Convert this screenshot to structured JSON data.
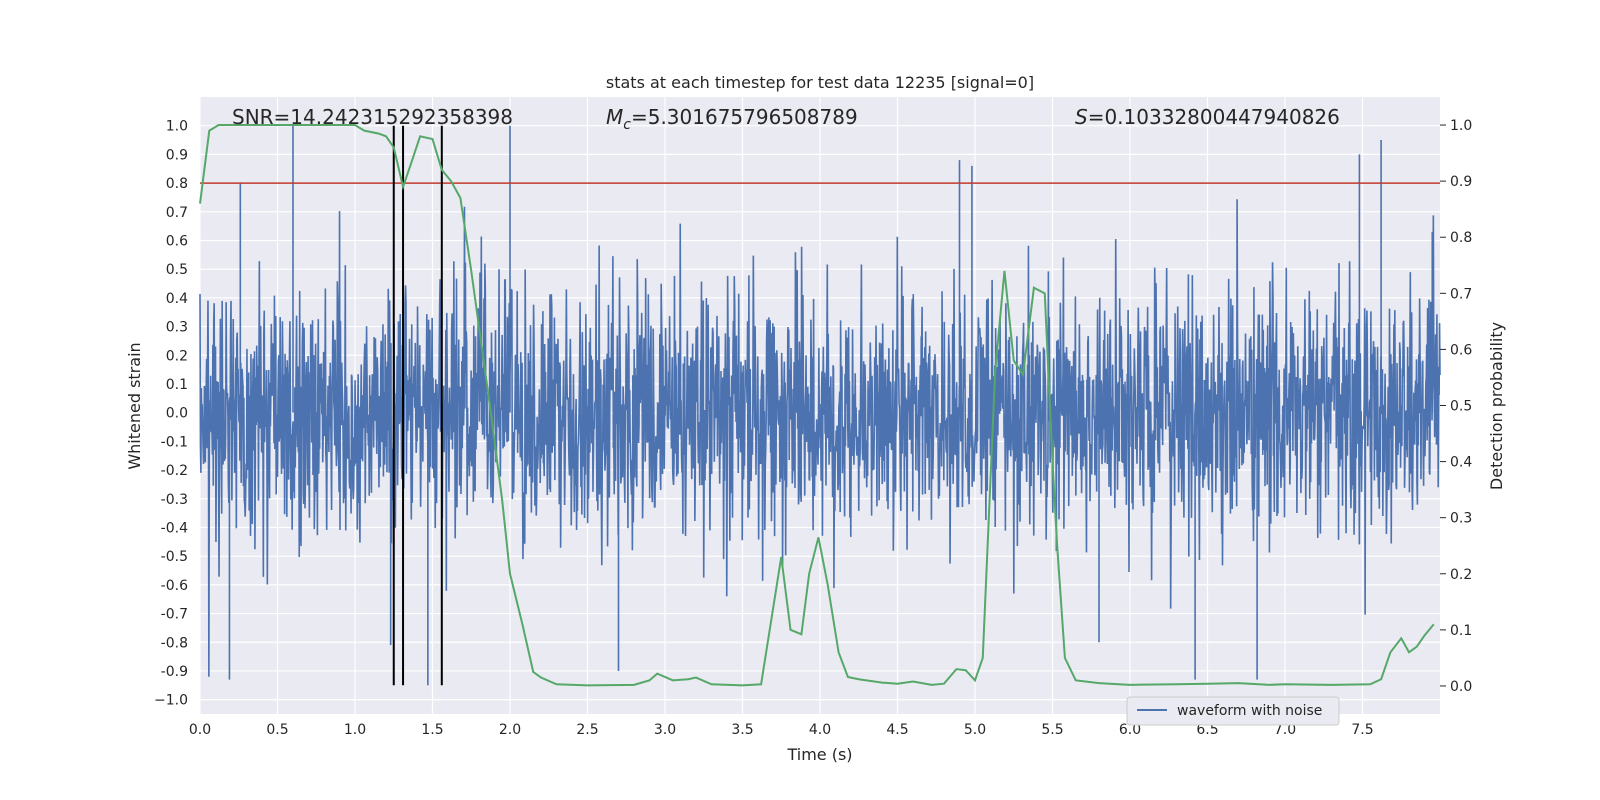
{
  "chart_data": {
    "type": "line",
    "title": "stats at each timestep for test data 12235 [signal=0]",
    "xlabel": "Time (s)",
    "ylabel_left": "Whitened strain",
    "ylabel_right": "Detection probability",
    "xlim": [
      0,
      8
    ],
    "ylim_left": [
      -1.05,
      1.1
    ],
    "ylim_right": [
      -0.05,
      1.05
    ],
    "x_ticks": [
      0.0,
      0.5,
      1.0,
      1.5,
      2.0,
      2.5,
      3.0,
      3.5,
      4.0,
      4.5,
      5.0,
      5.5,
      6.0,
      6.5,
      7.0,
      7.5
    ],
    "x_tick_labels": [
      "0.0",
      "0.5",
      "1.0",
      "1.5",
      "2.0",
      "2.5",
      "3.0",
      "3.5",
      "4.0",
      "4.5",
      "5.0",
      "5.5",
      "6.0",
      "6.5",
      "7.0",
      "7.5"
    ],
    "y_left_ticks": [
      1.0,
      0.9,
      0.8,
      0.7,
      0.6,
      0.5,
      0.4,
      0.3,
      0.2,
      0.1,
      0.0,
      -0.1,
      -0.2,
      -0.3,
      -0.4,
      -0.5,
      -0.6,
      -0.7,
      -0.8,
      -0.9,
      -1.0
    ],
    "y_left_tick_labels": [
      "1.0",
      "0.9",
      "0.8",
      "0.7",
      "0.6",
      "0.5",
      "0.4",
      "0.3",
      "0.2",
      "0.1",
      "0.0",
      "-0.1",
      "-0.2",
      "-0.3",
      "-0.4",
      "-0.5",
      "-0.6",
      "-0.7",
      "-0.8",
      "-0.9",
      "−1.0"
    ],
    "y_right_ticks": [
      1.0,
      0.9,
      0.8,
      0.7,
      0.6,
      0.5,
      0.4,
      0.3,
      0.2,
      0.1,
      0.0
    ],
    "y_right_tick_labels": [
      "1.0",
      "0.9",
      "0.8",
      "0.7",
      "0.6",
      "0.5",
      "0.4",
      "0.3",
      "0.2",
      "0.1",
      "0.0"
    ],
    "annotations": {
      "snr": "SNR=14.242315292358398",
      "mc_symbol": "M",
      "mc_sub": "c",
      "mc_value": "=5.301675796508789",
      "s_symbol": "S",
      "s_value": "=0.10332800447940826"
    },
    "threshold": {
      "value": 0.8,
      "axis": "left",
      "color": "#c0392b"
    },
    "event_markers_x": [
      1.25,
      1.31,
      1.56
    ],
    "event_marker_range_left": [
      -0.95,
      1.0
    ],
    "legend": {
      "entries": [
        "waveform with noise"
      ],
      "placement": "lower-right"
    },
    "grid": true,
    "colors": {
      "waveform": "#4c72b0",
      "probability": "#55a868",
      "threshold": "#c0392b",
      "markers": "#000000",
      "background": "#eaeaf2"
    },
    "series": [
      {
        "name": "waveform with noise",
        "axis": "left",
        "kind": "noise",
        "samples": 2800,
        "typical_peak_envelope": 0.55,
        "spikes": [
          {
            "x": 0.19,
            "y": -0.93
          },
          {
            "x": 0.6,
            "y": 1.0
          },
          {
            "x": 0.26,
            "y": 0.8
          },
          {
            "x": 1.47,
            "y": -0.95
          },
          {
            "x": 2.0,
            "y": 1.0
          },
          {
            "x": 2.7,
            "y": -0.9
          },
          {
            "x": 4.9,
            "y": 0.88
          },
          {
            "x": 4.98,
            "y": 0.86
          },
          {
            "x": 6.42,
            "y": -0.93
          },
          {
            "x": 6.82,
            "y": -0.93
          },
          {
            "x": 7.48,
            "y": 0.9
          },
          {
            "x": 7.62,
            "y": 0.95
          },
          {
            "x": 7.95,
            "y": 0.63
          },
          {
            "x": 1.23,
            "y": -0.81
          },
          {
            "x": 5.8,
            "y": -0.8
          }
        ]
      },
      {
        "name": "detection probability",
        "axis": "right",
        "x": [
          0.0,
          0.06,
          0.12,
          0.2,
          0.4,
          0.6,
          0.8,
          1.0,
          1.06,
          1.15,
          1.2,
          1.25,
          1.31,
          1.36,
          1.42,
          1.5,
          1.56,
          1.62,
          1.68,
          1.75,
          1.82,
          1.88,
          1.95,
          2.0,
          2.08,
          2.15,
          2.2,
          2.3,
          2.5,
          2.8,
          2.9,
          2.95,
          3.05,
          3.15,
          3.2,
          3.3,
          3.5,
          3.62,
          3.75,
          3.81,
          3.88,
          3.93,
          3.99,
          4.05,
          4.12,
          4.18,
          4.25,
          4.4,
          4.5,
          4.6,
          4.72,
          4.8,
          4.88,
          4.94,
          5.0,
          5.05,
          5.13,
          5.19,
          5.25,
          5.31,
          5.38,
          5.45,
          5.5,
          5.53,
          5.58,
          5.65,
          5.8,
          6.0,
          6.3,
          6.5,
          6.7,
          6.9,
          7.0,
          7.3,
          7.55,
          7.62,
          7.68,
          7.75,
          7.8,
          7.85,
          7.9,
          7.96
        ],
        "y": [
          0.86,
          0.99,
          1.0,
          1.0,
          1.0,
          1.0,
          1.0,
          1.0,
          0.99,
          0.985,
          0.98,
          0.96,
          0.89,
          0.93,
          0.98,
          0.975,
          0.92,
          0.9,
          0.87,
          0.74,
          0.6,
          0.48,
          0.33,
          0.2,
          0.11,
          0.025,
          0.015,
          0.003,
          0.001,
          0.002,
          0.01,
          0.022,
          0.01,
          0.012,
          0.015,
          0.003,
          0.001,
          0.003,
          0.23,
          0.1,
          0.092,
          0.2,
          0.265,
          0.18,
          0.06,
          0.016,
          0.012,
          0.006,
          0.004,
          0.008,
          0.002,
          0.004,
          0.03,
          0.028,
          0.01,
          0.05,
          0.56,
          0.74,
          0.58,
          0.555,
          0.71,
          0.7,
          0.4,
          0.25,
          0.05,
          0.01,
          0.005,
          0.002,
          0.003,
          0.004,
          0.005,
          0.002,
          0.003,
          0.002,
          0.003,
          0.012,
          0.06,
          0.085,
          0.06,
          0.07,
          0.09,
          0.11
        ]
      }
    ]
  }
}
